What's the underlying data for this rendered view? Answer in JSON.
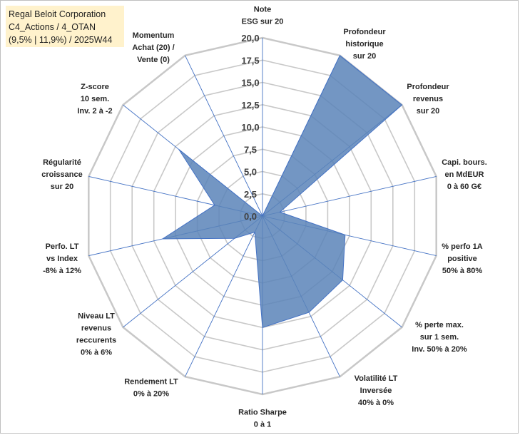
{
  "title": {
    "line1": "Regal Beloit Corporation",
    "line2": "C4_Actions / 4_OTAN",
    "line3": "(9,5% | 11,9%) / 2025W44"
  },
  "colors": {
    "fill": "#5a84b8",
    "stroke": "#4472c4",
    "grid": "#c8c8c8",
    "spoke": "#4472c4",
    "title_bg": "#fff2cc"
  },
  "chart_data": {
    "type": "radar",
    "range": [
      0,
      20
    ],
    "ticks": [
      "0,0",
      "2,5",
      "5,0",
      "7,5",
      "10,0",
      "12,5",
      "15,0",
      "17,5",
      "20,0"
    ],
    "grid": true,
    "axes": [
      {
        "label": [
          "Note",
          "ESG sur 20"
        ],
        "value": 0.0
      },
      {
        "label": [
          "Profondeur",
          "historique",
          "sur 20"
        ],
        "value": 20.0
      },
      {
        "label": [
          "Profondeur",
          "revenus",
          "sur 20"
        ],
        "value": 20.0
      },
      {
        "label": [
          "Capi. bours.",
          "en MdEUR",
          "0 à 60 G€"
        ],
        "value": 2.0
      },
      {
        "label": [
          "% perfo 1A",
          "positive",
          "50% à 80%"
        ],
        "value": 9.5
      },
      {
        "label": [
          "% perte max.",
          "sur 1 sem.",
          "Inv. 50% à 20%"
        ],
        "value": 11.5
      },
      {
        "label": [
          "Volatilité LT",
          "Inversée",
          "40% à 0%"
        ],
        "value": 12.0
      },
      {
        "label": [
          "Ratio Sharpe",
          "0 à 1"
        ],
        "value": 12.5
      },
      {
        "label": [
          "Rendement LT",
          "0% à 20%"
        ],
        "value": 2.0
      },
      {
        "label": [
          "Niveau LT",
          "revenus",
          "reccurents",
          "0% à 6%"
        ],
        "value": 4.0
      },
      {
        "label": [
          "Perfo. LT",
          "vs Index",
          "-8% à 12%"
        ],
        "value": 11.5
      },
      {
        "label": [
          "Régularité",
          "croissance",
          "sur 20"
        ],
        "value": 5.5
      },
      {
        "label": [
          "Z-score",
          "10 sem.",
          "Inv. 2 à -2"
        ],
        "value": 12.0
      },
      {
        "label": [
          "Momentum",
          "Achat (20) /",
          "Vente (0)"
        ],
        "value": 0.0
      }
    ]
  }
}
